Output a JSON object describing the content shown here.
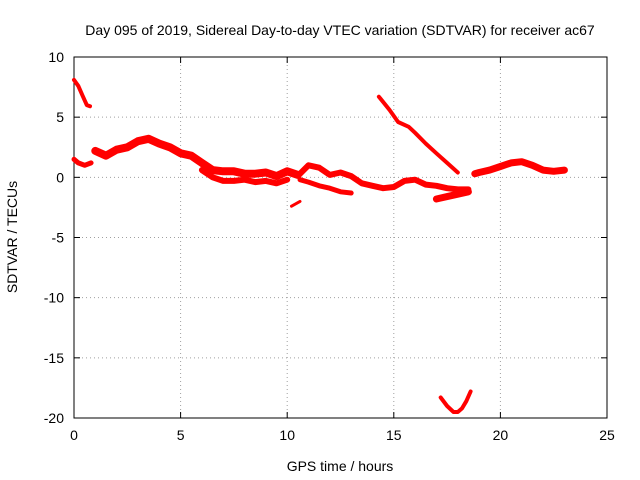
{
  "chart_data": {
    "type": "line",
    "title": "Day 095 of 2019, Sidereal Day-to-day VTEC variation (SDTVAR) for receiver ac67",
    "xlabel": "GPS time / hours",
    "ylabel": "SDTVAR / TECUs",
    "xlim": [
      0,
      25
    ],
    "ylim": [
      -20,
      10
    ],
    "xticks": [
      0,
      5,
      10,
      15,
      20,
      25
    ],
    "xtick_labels": [
      "0",
      "5",
      "10",
      "15",
      "20",
      "25"
    ],
    "yticks": [
      10,
      5,
      0,
      -5,
      -10,
      -15,
      -20
    ],
    "ytick_labels": [
      "10",
      "5",
      "0",
      "-5",
      "-10",
      "-15",
      "-20"
    ],
    "grid": true,
    "color": "#ff0000",
    "series": [
      {
        "name": "early-high-arc",
        "width": 4,
        "x": [
          0.0,
          0.2,
          0.4,
          0.6,
          0.75
        ],
        "y": [
          8.1,
          7.6,
          6.8,
          6.0,
          5.9
        ]
      },
      {
        "name": "start-segment",
        "width": 5,
        "x": [
          0.0,
          0.2,
          0.5,
          0.8
        ],
        "y": [
          1.5,
          1.2,
          1.0,
          1.2
        ]
      },
      {
        "name": "main-band-upper",
        "width": 8,
        "x": [
          1.0,
          1.5,
          2.0,
          2.5,
          3.0,
          3.5,
          4.0,
          4.5,
          5.0,
          5.5,
          6.0,
          6.5,
          7.0,
          7.5,
          8.0,
          8.5,
          9.0,
          9.5,
          10.0,
          10.5
        ],
        "y": [
          2.2,
          1.8,
          2.3,
          2.5,
          3.0,
          3.2,
          2.8,
          2.5,
          2.0,
          1.8,
          1.2,
          0.6,
          0.5,
          0.5,
          0.3,
          0.3,
          0.4,
          0.1,
          0.5,
          0.2
        ]
      },
      {
        "name": "main-band-lower",
        "width": 6,
        "x": [
          6.0,
          6.5,
          7.0,
          7.5,
          8.0,
          8.5,
          9.0,
          9.5,
          10.0
        ],
        "y": [
          0.6,
          0.0,
          -0.3,
          -0.3,
          -0.2,
          -0.4,
          -0.3,
          -0.5,
          -0.2
        ]
      },
      {
        "name": "small-dash",
        "width": 3,
        "x": [
          10.2,
          10.6
        ],
        "y": [
          -2.4,
          -2.0
        ]
      },
      {
        "name": "mid-band-upper",
        "width": 6,
        "x": [
          10.6,
          11.0,
          11.5,
          12.0,
          12.5,
          13.0,
          13.5,
          14.0,
          14.5,
          15.0,
          15.5,
          16.0,
          16.5,
          17.0,
          17.5,
          18.0,
          18.5
        ],
        "y": [
          0.3,
          1.0,
          0.8,
          0.2,
          0.4,
          0.1,
          -0.5,
          -0.7,
          -0.9,
          -0.8,
          -0.3,
          -0.2,
          -0.6,
          -0.7,
          -0.9,
          -1.0,
          -1.0
        ]
      },
      {
        "name": "mid-band-lower",
        "width": 5,
        "x": [
          10.6,
          11.0,
          11.5,
          12.0,
          12.5,
          13.0
        ],
        "y": [
          -0.2,
          -0.4,
          -0.7,
          -0.9,
          -1.2,
          -1.3
        ]
      },
      {
        "name": "descending-arc",
        "width": 4,
        "x": [
          14.3,
          14.8,
          15.2,
          15.7,
          16.0,
          16.5,
          17.0,
          17.5,
          18.0
        ],
        "y": [
          6.7,
          5.6,
          4.6,
          4.2,
          3.7,
          2.8,
          2.0,
          1.2,
          0.4
        ]
      },
      {
        "name": "dip-segment",
        "width": 4,
        "x": [
          17.2,
          17.5,
          17.8,
          18.0,
          18.2,
          18.4,
          18.6
        ],
        "y": [
          -18.3,
          -19.0,
          -19.5,
          -19.5,
          -19.2,
          -18.6,
          -17.8
        ]
      },
      {
        "name": "late-band",
        "width": 7,
        "x": [
          17.0,
          17.5,
          18.0,
          18.5
        ],
        "y": [
          -1.8,
          -1.6,
          -1.4,
          -1.2
        ]
      },
      {
        "name": "tail-segment",
        "width": 7,
        "x": [
          18.8,
          19.0,
          19.5,
          20.0,
          20.5,
          21.0,
          21.5,
          22.0,
          22.5,
          23.0
        ],
        "y": [
          0.3,
          0.4,
          0.6,
          0.9,
          1.2,
          1.3,
          1.0,
          0.6,
          0.5,
          0.6
        ]
      }
    ]
  }
}
